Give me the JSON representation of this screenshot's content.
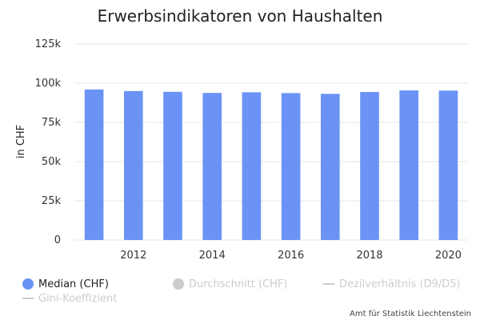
{
  "chart_data": {
    "type": "bar",
    "title": "Erwerbsindikatoren von Haushalten",
    "ylabel": "in CHF",
    "xlabel": "",
    "x": [
      2011,
      2012,
      2013,
      2014,
      2015,
      2016,
      2017,
      2018,
      2019,
      2020
    ],
    "x_ticks": [
      "2012",
      "2014",
      "2016",
      "2018",
      "2020"
    ],
    "ylim": [
      0,
      125000
    ],
    "y_ticks": [
      "0",
      "25k",
      "50k",
      "75k",
      "100k",
      "125k"
    ],
    "series": [
      {
        "name": "Median (CHF)",
        "color": "#6b93f5",
        "visible": true,
        "values": [
          96000,
          95000,
          94500,
          93800,
          94200,
          93700,
          93200,
          94400,
          95400,
          95300
        ]
      }
    ],
    "legend": [
      {
        "label": "Median (CHF)",
        "symbol": "circle",
        "color": "#6b93f5",
        "active": true
      },
      {
        "label": "Durchschnitt (CHF)",
        "symbol": "circle",
        "color": "#cccccc",
        "active": false
      },
      {
        "label": "Dezilverhältnis (D9/D5)",
        "symbol": "line",
        "color": "#cccccc",
        "active": false
      },
      {
        "label": "Gini-Koeffizient",
        "symbol": "line",
        "color": "#cccccc",
        "active": false
      }
    ],
    "legend_position": "bottom",
    "grid": true,
    "source": "Amt für Statistik Liechtenstein"
  }
}
